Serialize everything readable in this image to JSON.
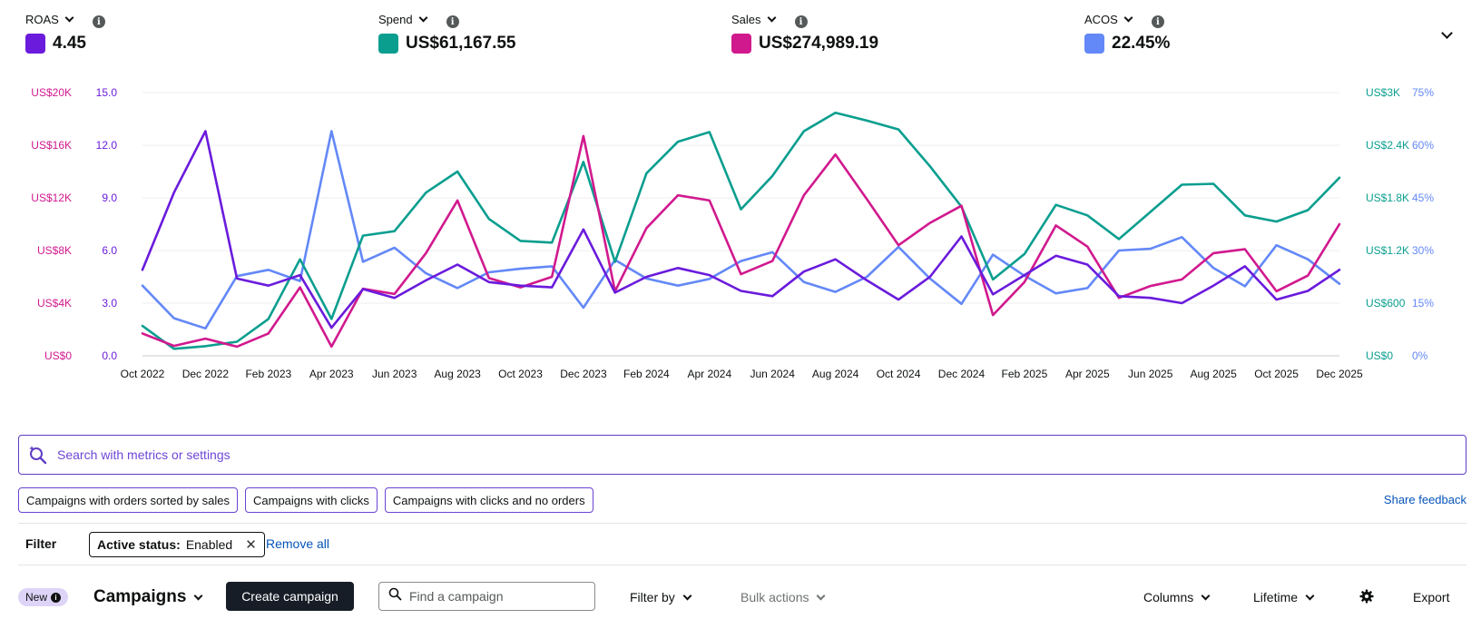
{
  "metrics": [
    {
      "label": "ROAS",
      "value": "4.45",
      "color": "#6a1bdc"
    },
    {
      "label": "Spend",
      "value": "US$61,167.55",
      "color": "#0a9e8f"
    },
    {
      "label": "Sales",
      "value": "US$274,989.19",
      "color": "#d1198e"
    },
    {
      "label": "ACOS",
      "value": "22.45%",
      "color": "#6388f7"
    }
  ],
  "chart_data": {
    "type": "line",
    "x": [
      "Oct 2022",
      "Nov 2022",
      "Dec 2022",
      "Jan 2023",
      "Feb 2023",
      "Mar 2023",
      "Apr 2023",
      "May 2023",
      "Jun 2023",
      "Jul 2023",
      "Aug 2023",
      "Sep 2023",
      "Oct 2023",
      "Nov 2023",
      "Dec 2023",
      "Jan 2024",
      "Feb 2024",
      "Mar 2024",
      "Apr 2024",
      "May 2024",
      "Jun 2024",
      "Jul 2024",
      "Aug 2024",
      "Sep 2024",
      "Oct 2024",
      "Nov 2024",
      "Dec 2024",
      "Jan 2025",
      "Feb 2025",
      "Mar 2025",
      "Apr 2025",
      "May 2025",
      "Jun 2025",
      "Jul 2025",
      "Aug 2025",
      "Sep 2025",
      "Oct 2025",
      "Nov 2025",
      "Dec 2025"
    ],
    "x_tick_labels": [
      "Oct 2022",
      "Dec 2022",
      "Feb 2023",
      "Apr 2023",
      "Jun 2023",
      "Aug 2023",
      "Oct 2023",
      "Dec 2023",
      "Feb 2024",
      "Apr 2024",
      "Jun 2024",
      "Aug 2024",
      "Oct 2024",
      "Dec 2024",
      "Feb 2025",
      "Apr 2025",
      "Jun 2025",
      "Aug 2025",
      "Oct 2025",
      "Dec 2025"
    ],
    "axes": {
      "sales": {
        "side": "left-outer",
        "ylim": [
          0,
          20000
        ],
        "ticks": [
          "US$0",
          "US$4K",
          "US$8K",
          "US$12K",
          "US$16K",
          "US$20K"
        ],
        "color": "#d1198e"
      },
      "roas": {
        "side": "left-inner",
        "ylim": [
          0,
          15
        ],
        "ticks": [
          "0.0",
          "3.0",
          "6.0",
          "9.0",
          "12.0",
          "15.0"
        ],
        "color": "#6a1bdc"
      },
      "spend": {
        "side": "right-inner",
        "ylim": [
          0,
          3000
        ],
        "ticks": [
          "US$0",
          "US$600",
          "US$1.2K",
          "US$1.8K",
          "US$2.4K",
          "US$3K"
        ],
        "color": "#0a9e8f"
      },
      "acos": {
        "side": "right-outer",
        "ylim": [
          0,
          75
        ],
        "ticks": [
          "0%",
          "15%",
          "30%",
          "45%",
          "60%",
          "75%"
        ],
        "color": "#6388f7"
      }
    },
    "grid": true,
    "series": [
      {
        "name": "ROAS",
        "axis": "roas",
        "color": "#6a1bdc",
        "values": [
          4.9,
          9.3,
          12.8,
          4.4,
          4.0,
          4.6,
          1.6,
          3.8,
          3.3,
          4.3,
          5.2,
          4.2,
          4.0,
          3.9,
          7.2,
          3.6,
          4.5,
          5.0,
          4.6,
          3.7,
          3.4,
          4.8,
          5.5,
          4.3,
          3.2,
          4.5,
          6.8,
          3.5,
          4.6,
          5.7,
          5.2,
          3.4,
          3.3,
          3.0,
          4.0,
          5.1,
          3.2,
          3.7,
          4.9
        ]
      },
      {
        "name": "Spend",
        "axis": "spend",
        "color": "#0a9e8f",
        "values": [
          340,
          80,
          110,
          160,
          420,
          1100,
          420,
          1370,
          1420,
          1860,
          2100,
          1560,
          1310,
          1290,
          2210,
          1070,
          2080,
          2440,
          2550,
          1670,
          2050,
          2560,
          2770,
          2680,
          2580,
          2160,
          1700,
          870,
          1160,
          1720,
          1600,
          1330,
          1640,
          1950,
          1960,
          1600,
          1530,
          1660,
          2030
        ]
      },
      {
        "name": "Sales",
        "axis": "sales",
        "color": "#d1198e",
        "values": [
          1700,
          750,
          1300,
          700,
          1700,
          5200,
          700,
          5100,
          4700,
          7800,
          11800,
          5900,
          5200,
          6000,
          16700,
          4900,
          9700,
          12200,
          11800,
          6200,
          7200,
          12200,
          15300,
          11900,
          8400,
          10100,
          11400,
          3100,
          5600,
          9900,
          8300,
          4400,
          5300,
          5800,
          7800,
          8100,
          4900,
          6100,
          10000
        ]
      },
      {
        "name": "ACOS",
        "axis": "acos",
        "color": "#6388f7",
        "values": [
          20,
          10.7,
          7.8,
          22.7,
          24.5,
          21.3,
          64,
          26.8,
          30.8,
          23.5,
          19.3,
          23.8,
          24.8,
          25.5,
          13.7,
          27.3,
          22,
          20,
          21.9,
          27,
          29.5,
          21,
          18.2,
          22.5,
          31,
          22,
          14.8,
          28.8,
          22.8,
          17.8,
          19.3,
          30,
          30.5,
          33.8,
          25,
          19.8,
          31.5,
          27.5,
          20.5
        ]
      }
    ]
  },
  "search": {
    "placeholder": "Search with metrics or settings"
  },
  "chips": [
    "Campaigns with orders sorted by sales",
    "Campaigns with clicks",
    "Campaigns with clicks and no orders"
  ],
  "share_feedback": "Share feedback",
  "filter": {
    "label": "Filter",
    "pill_key": "Active status:",
    "pill_value": "Enabled",
    "remove_all": "Remove all"
  },
  "toolbar": {
    "new_badge": "New",
    "title": "Campaigns",
    "create": "Create campaign",
    "find_placeholder": "Find a campaign",
    "filter_by": "Filter by",
    "bulk_actions": "Bulk actions",
    "columns": "Columns",
    "lifetime": "Lifetime",
    "export": "Export"
  }
}
